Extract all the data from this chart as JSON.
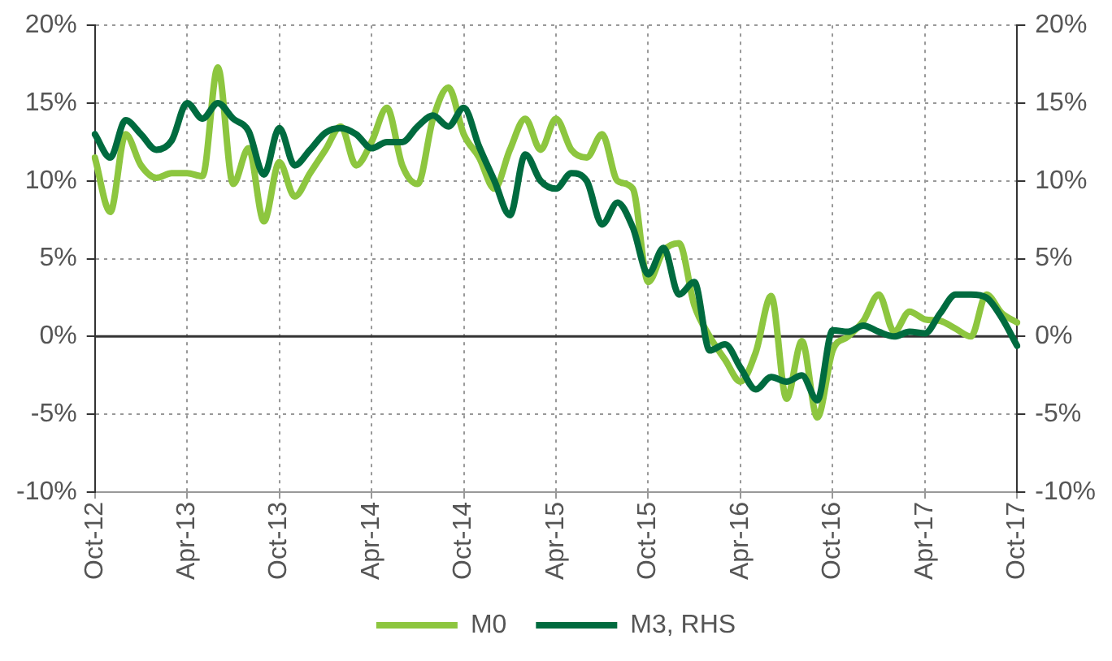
{
  "chart_data": {
    "type": "line",
    "categories": [
      "Oct-12",
      null,
      null,
      null,
      null,
      null,
      "Apr-13",
      null,
      null,
      null,
      null,
      null,
      "Oct-13",
      null,
      null,
      null,
      null,
      null,
      "Apr-14",
      null,
      null,
      null,
      null,
      null,
      "Oct-14",
      null,
      null,
      null,
      null,
      null,
      "Apr-15",
      null,
      null,
      null,
      null,
      null,
      "Oct-15",
      null,
      null,
      null,
      null,
      null,
      "Apr-16",
      null,
      null,
      null,
      null,
      null,
      "Oct-16",
      null,
      null,
      null,
      null,
      null,
      "Apr-17",
      null,
      null,
      null,
      null,
      null,
      "Oct-17"
    ],
    "series": [
      {
        "name": "M0",
        "color": "#8dc63f",
        "values": [
          11.5,
          8,
          13,
          11,
          10.2,
          10.5,
          10.5,
          10.3,
          17.3,
          9.8,
          12.1,
          7.4,
          11.2,
          9,
          10.5,
          12,
          13.5,
          11,
          12.5,
          14.7,
          11,
          9.8,
          14,
          16,
          13,
          11.5,
          9.5,
          12,
          14,
          12,
          14,
          12,
          11.5,
          13,
          10,
          9.5,
          3.5,
          5.5,
          6,
          2,
          0,
          -1.5,
          -2.9,
          -1,
          2.6,
          -4,
          -0.3,
          -5.2,
          -0.9,
          0,
          1,
          2.7,
          0.3,
          1.6,
          1.1,
          1,
          0.5,
          0,
          2.7,
          1.5,
          0.9
        ]
      },
      {
        "name": "M3, RHS",
        "color": "#006b3f",
        "axis": "y2",
        "values": [
          13,
          11.5,
          13.9,
          13,
          12,
          12.6,
          15,
          14,
          15,
          14,
          13.2,
          10.4,
          13.4,
          11,
          12,
          13.1,
          13.4,
          13,
          12.1,
          12.5,
          12.5,
          13.5,
          14.2,
          13.5,
          14.7,
          12.2,
          10,
          7.8,
          11.7,
          10,
          9.5,
          10.5,
          10,
          7.2,
          8.6,
          7,
          4,
          5.7,
          2.7,
          3.5,
          -0.9,
          -0.5,
          -2,
          -3.4,
          -2.6,
          -2.9,
          -2.5,
          -4.1,
          0.4,
          0.3,
          0.7,
          0.3,
          0,
          0.3,
          0.2,
          1.5,
          2.7,
          2.7,
          2.5,
          1.2,
          -0.6
        ]
      }
    ],
    "ylim": [
      -10,
      20
    ],
    "yticks": [
      {
        "value": -10,
        "label": "-10%"
      },
      {
        "value": -5,
        "label": "-5%"
      },
      {
        "value": 0,
        "label": "0%"
      },
      {
        "value": 5,
        "label": "5%"
      },
      {
        "value": 10,
        "label": "10%"
      },
      {
        "value": 15,
        "label": "15%"
      },
      {
        "value": 20,
        "label": "20%"
      }
    ],
    "y2lim": [
      -10,
      20
    ],
    "y2ticks": [
      {
        "value": -10,
        "label": "-10%"
      },
      {
        "value": -5,
        "label": "-5%"
      },
      {
        "value": 0,
        "label": "0%"
      },
      {
        "value": 5,
        "label": "5%"
      },
      {
        "value": 10,
        "label": "10%"
      },
      {
        "value": 15,
        "label": "15%"
      },
      {
        "value": 20,
        "label": "20%"
      }
    ],
    "ref_lines": [
      {
        "axis": "y",
        "value": 0,
        "color": "#333333",
        "line_style": "solid"
      }
    ],
    "grid": true,
    "legend": "bottom",
    "marker": "none",
    "line_style": "solid"
  }
}
